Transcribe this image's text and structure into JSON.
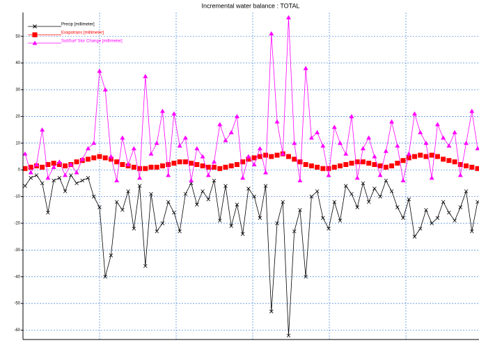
{
  "chart_data": {
    "type": "line",
    "title": "Incremental water balance : TOTAL",
    "x": [
      0,
      1,
      2,
      3,
      4,
      5,
      6,
      7,
      8,
      9,
      10,
      11,
      12,
      13,
      14,
      15,
      16,
      17,
      18,
      19,
      20,
      21,
      22,
      23,
      24,
      25,
      26,
      27,
      28,
      29,
      30,
      31,
      32,
      33,
      34,
      35,
      36,
      37,
      38,
      39,
      40,
      41,
      42,
      43,
      44,
      45,
      46,
      47,
      48,
      49,
      50,
      51,
      52,
      53,
      54,
      55,
      56,
      57,
      58,
      59,
      60,
      61,
      62,
      63,
      64,
      65,
      66,
      67,
      68,
      69,
      70,
      71,
      72,
      73,
      74,
      75,
      76,
      77,
      78,
      79
    ],
    "xlim": [
      0,
      79
    ],
    "ylim": [
      -63.5,
      58.9
    ],
    "yticks": [
      -60,
      -50,
      -40,
      -30,
      -20,
      -10,
      0,
      10,
      20,
      30,
      40,
      50
    ],
    "grid": true,
    "legend": "upper left",
    "series": [
      {
        "name": "Precip [millimeter]",
        "color": "#000000",
        "marker": "x",
        "values": [
          -6,
          -3,
          -2,
          -5,
          -16,
          -4,
          -3,
          -8,
          -2,
          -5,
          -4,
          -3,
          -10,
          -14,
          -40,
          -32,
          -12,
          -15,
          -8,
          -22,
          -6,
          -36,
          -9,
          -23,
          -20,
          -12,
          -16,
          -23,
          -9,
          -5,
          -13,
          -8,
          -11,
          -4,
          -19,
          -6,
          -21,
          -13,
          -24,
          -7,
          -10,
          -18,
          -6,
          -53,
          -20,
          -12,
          -62,
          -23,
          -15,
          -40,
          -10,
          -8,
          -18,
          -22,
          -12,
          -19,
          -6,
          -9,
          -14,
          -5,
          -12,
          -7,
          -10,
          -4,
          -8,
          -14,
          -18,
          -11,
          -25,
          -22,
          -15,
          -20,
          -18,
          -12,
          -16,
          -19,
          -14,
          -8,
          -23,
          -12
        ]
      },
      {
        "name": "Evapotrans [millimeter]",
        "color": "#ff0000",
        "marker": "square",
        "values": [
          0.5,
          1,
          1.5,
          1,
          2,
          2.5,
          2,
          1.5,
          2,
          3,
          3.5,
          4,
          4.5,
          5,
          4.5,
          4,
          3,
          2,
          1.5,
          1,
          0.5,
          0.5,
          1,
          1,
          1.5,
          2,
          2.5,
          3,
          3,
          2.5,
          2,
          1.5,
          1,
          1,
          0.5,
          1,
          1.5,
          2,
          3,
          4,
          4.5,
          5,
          5.5,
          5,
          5.5,
          6,
          5,
          4,
          3,
          2,
          1.5,
          1,
          0.5,
          0.5,
          1,
          1.5,
          2,
          2.5,
          3,
          3,
          2.5,
          2,
          1.5,
          1,
          1.5,
          2.5,
          3.5,
          4.5,
          5,
          5.5,
          5,
          5.5,
          5,
          4,
          3.5,
          3,
          2,
          1.5,
          1,
          0.5
        ]
      },
      {
        "name": "SubSurf Stor Change [millimeter]",
        "color": "#ff00ff",
        "marker": "triangle",
        "values": [
          6,
          -1,
          2,
          15,
          -3,
          1,
          3,
          -2,
          2,
          -1,
          4,
          8,
          10,
          37,
          30,
          5,
          -4,
          12,
          2,
          8,
          -3,
          35,
          6,
          10,
          22,
          -2,
          21,
          9,
          12,
          -4,
          8,
          5,
          -2,
          3,
          17,
          11,
          14,
          20,
          -3,
          5,
          2,
          8,
          -1,
          51,
          18,
          6,
          57,
          10,
          -4,
          38,
          12,
          14,
          9,
          -2,
          16,
          10,
          6,
          20,
          -3,
          8,
          12,
          5,
          -2,
          7,
          18,
          9,
          -4,
          6,
          21,
          14,
          10,
          -3,
          17,
          12,
          9,
          14,
          -2,
          10,
          22,
          8
        ]
      }
    ]
  }
}
